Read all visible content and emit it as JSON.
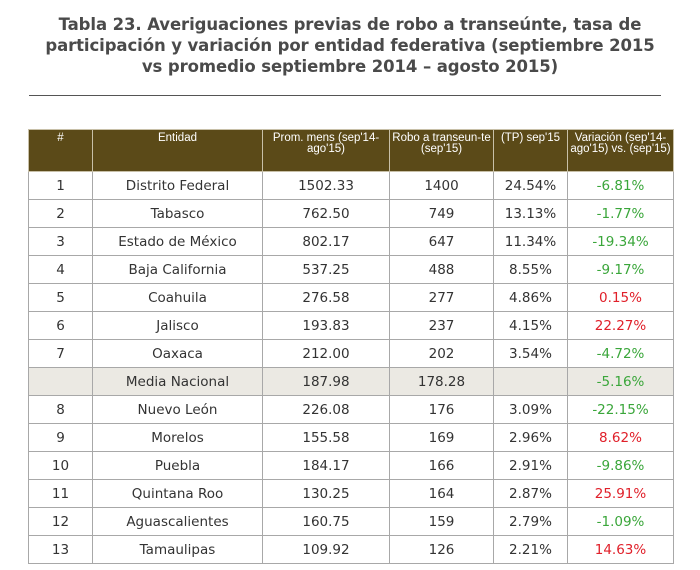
{
  "title": {
    "line1": "Tabla 23. Averiguaciones previas de robo a transeúnte, tasa de",
    "line2": "participación y variación por entidad federativa (septiembre 2015",
    "line3": "vs promedio septiembre 2014 – agosto 2015)"
  },
  "colors": {
    "header_bg": "#5b4a18",
    "negative": "#3aa63a",
    "positive": "#e0202a",
    "highlight_row": "#ebe9e3"
  },
  "table": {
    "headers": [
      "#",
      "Entidad",
      "Prom. mens (sep'14-ago'15)",
      "Robo a transeun-te (sep'15)",
      "(TP) sep'15",
      "Variación (sep'14-ago'15) vs. (sep'15)"
    ],
    "rows": [
      {
        "num": "1",
        "entidad": "Distrito Federal",
        "prom": "1502.33",
        "robo": "1400",
        "tp": "24.54%",
        "var": "-6.81%",
        "sign": "neg"
      },
      {
        "num": "2",
        "entidad": "Tabasco",
        "prom": "762.50",
        "robo": "749",
        "tp": "13.13%",
        "var": "-1.77%",
        "sign": "neg"
      },
      {
        "num": "3",
        "entidad": "Estado de México",
        "prom": "802.17",
        "robo": "647",
        "tp": "11.34%",
        "var": "-19.34%",
        "sign": "neg"
      },
      {
        "num": "4",
        "entidad": "Baja California",
        "prom": "537.25",
        "robo": "488",
        "tp": "8.55%",
        "var": "-9.17%",
        "sign": "neg"
      },
      {
        "num": "5",
        "entidad": "Coahuila",
        "prom": "276.58",
        "robo": "277",
        "tp": "4.86%",
        "var": "0.15%",
        "sign": "pos"
      },
      {
        "num": "6",
        "entidad": "Jalisco",
        "prom": "193.83",
        "robo": "237",
        "tp": "4.15%",
        "var": "22.27%",
        "sign": "pos"
      },
      {
        "num": "7",
        "entidad": "Oaxaca",
        "prom": "212.00",
        "robo": "202",
        "tp": "3.54%",
        "var": "-4.72%",
        "sign": "neg"
      },
      {
        "num": "",
        "entidad": "Media Nacional",
        "prom": "187.98",
        "robo": "178.28",
        "tp": "",
        "var": "-5.16%",
        "sign": "neg",
        "highlight": true
      },
      {
        "num": "8",
        "entidad": "Nuevo León",
        "prom": "226.08",
        "robo": "176",
        "tp": "3.09%",
        "var": "-22.15%",
        "sign": "neg"
      },
      {
        "num": "9",
        "entidad": "Morelos",
        "prom": "155.58",
        "robo": "169",
        "tp": "2.96%",
        "var": "8.62%",
        "sign": "pos"
      },
      {
        "num": "10",
        "entidad": "Puebla",
        "prom": "184.17",
        "robo": "166",
        "tp": "2.91%",
        "var": "-9.86%",
        "sign": "neg"
      },
      {
        "num": "11",
        "entidad": "Quintana Roo",
        "prom": "130.25",
        "robo": "164",
        "tp": "2.87%",
        "var": "25.91%",
        "sign": "pos"
      },
      {
        "num": "12",
        "entidad": "Aguascalientes",
        "prom": "160.75",
        "robo": "159",
        "tp": "2.79%",
        "var": "-1.09%",
        "sign": "neg"
      },
      {
        "num": "13",
        "entidad": "Tamaulipas",
        "prom": "109.92",
        "robo": "126",
        "tp": "2.21%",
        "var": "14.63%",
        "sign": "pos"
      }
    ]
  }
}
